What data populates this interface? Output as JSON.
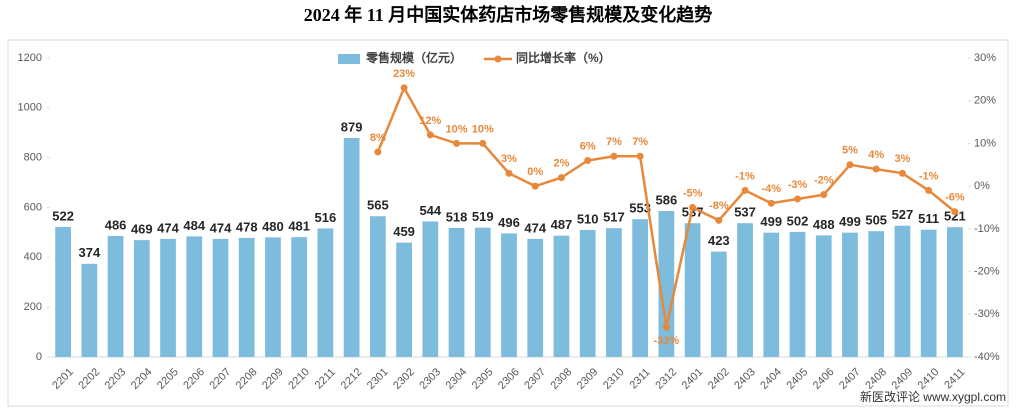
{
  "chart_data": {
    "type": "bar-line",
    "title": "2024 年 11 月中国实体药店市场零售规模及变化趋势",
    "categories": [
      "2201",
      "2202",
      "2203",
      "2204",
      "2205",
      "2206",
      "2207",
      "2208",
      "2209",
      "2210",
      "2211",
      "2212",
      "2301",
      "2302",
      "2303",
      "2304",
      "2305",
      "2306",
      "2307",
      "2308",
      "2309",
      "2310",
      "2311",
      "2312",
      "2401",
      "2402",
      "2403",
      "2404",
      "2405",
      "2406",
      "2407",
      "2408",
      "2409",
      "2410",
      "2411"
    ],
    "series": [
      {
        "name": "零售规模（亿元）",
        "type": "bar",
        "axis": "y",
        "color": "#7dbcdc",
        "values": [
          522,
          374,
          486,
          469,
          474,
          484,
          474,
          478,
          480,
          481,
          516,
          879,
          565,
          459,
          544,
          518,
          519,
          496,
          474,
          487,
          510,
          517,
          553,
          586,
          537,
          423,
          537,
          499,
          502,
          488,
          499,
          505,
          527,
          511,
          521
        ]
      },
      {
        "name": "同比增长率（%）",
        "type": "line",
        "axis": "y2",
        "color": "#e8883a",
        "values": [
          null,
          null,
          null,
          null,
          null,
          null,
          null,
          null,
          null,
          null,
          null,
          null,
          8,
          23,
          12,
          10,
          10,
          3,
          0,
          2,
          6,
          7,
          7,
          -33,
          -5,
          -8,
          -1,
          -4,
          -3,
          -2,
          5,
          4,
          3,
          -1,
          -6
        ],
        "value_labels": [
          null,
          null,
          null,
          null,
          null,
          null,
          null,
          null,
          null,
          null,
          null,
          null,
          "8%",
          "23%",
          "12%",
          "10%",
          "10%",
          "3%",
          "0%",
          "2%",
          "6%",
          "7%",
          "7%",
          "-33%",
          "-5%",
          "-8%",
          "-1%",
          "-4%",
          "-3%",
          "-2%",
          "5%",
          "4%",
          "3%",
          "-1%",
          "-6%"
        ]
      }
    ],
    "ylim": [
      0,
      1200
    ],
    "yticks": [
      0,
      200,
      400,
      600,
      800,
      1000,
      1200
    ],
    "y2lim": [
      -40,
      30
    ],
    "y2ticks": [
      {
        "value": -40,
        "label": "-40%"
      },
      {
        "value": -30,
        "label": "-30%"
      },
      {
        "value": -20,
        "label": "-20%"
      },
      {
        "value": -10,
        "label": "-10%"
      },
      {
        "value": 0,
        "label": "0%"
      },
      {
        "value": 10,
        "label": "10%"
      },
      {
        "value": 20,
        "label": "20%"
      },
      {
        "value": 30,
        "label": "30%"
      }
    ],
    "grid": false,
    "legend": "top",
    "source": "新医改评论 www.xygpl.com"
  }
}
